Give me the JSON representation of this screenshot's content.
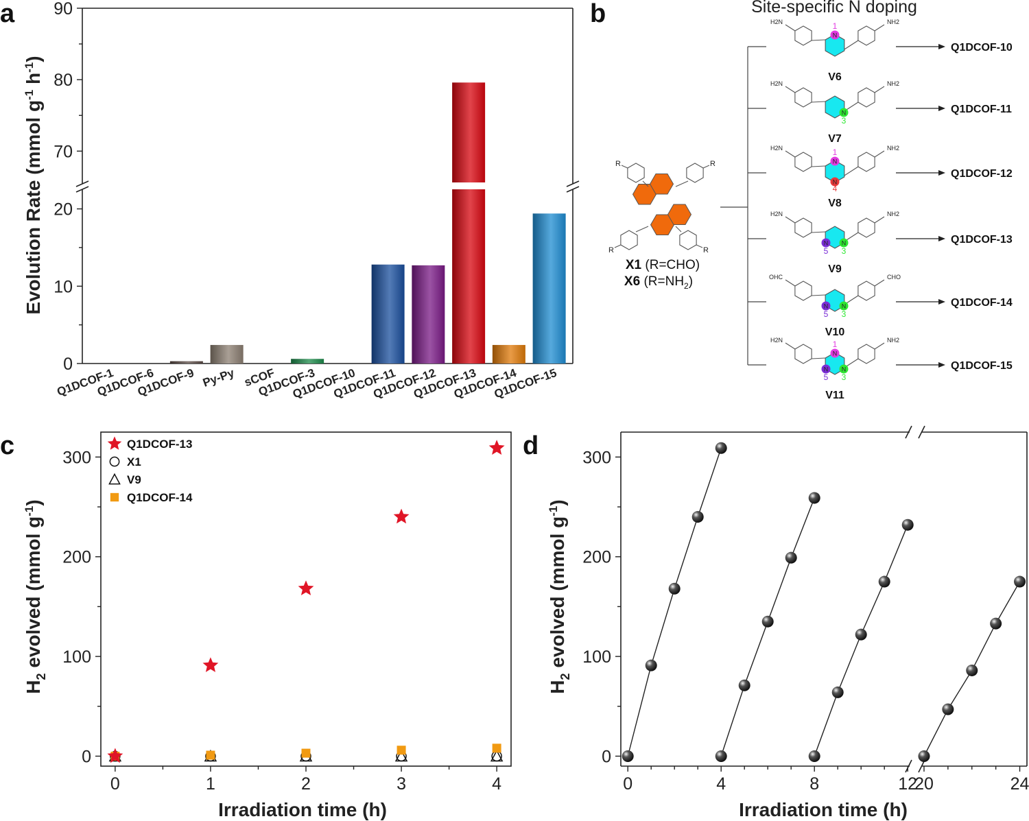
{
  "panel_letters": [
    "a",
    "b",
    "c",
    "d"
  ],
  "chart_data": [
    {
      "id": "a",
      "type": "bar",
      "ylabel": "Evolution Rate (mmol g-1 h-1)",
      "ylabel_main": "Evolution Rate (mmol g",
      "ylabel_sup1": "-1",
      "ylabel_mid": " h",
      "ylabel_sup2": "-1",
      "ylabel_end": ")",
      "categories": [
        "Q1DCOF-1",
        "Q1DCOF-6",
        "Q1DCOF-9",
        "Py-Py",
        "sCOF",
        "Q1DCOF-3",
        "Q1DCOF-10",
        "Q1DCOF-11",
        "Q1DCOF-12",
        "Q1DCOF-13",
        "Q1DCOF-14",
        "Q1DCOF-15"
      ],
      "values": [
        0,
        0,
        0.3,
        2.4,
        0,
        0.6,
        0,
        12.8,
        12.7,
        79.6,
        2.4,
        19.4
      ],
      "colors": [
        "#888888",
        "#888888",
        "#5a4a44",
        "#8c7f72",
        "#888888",
        "#1c8a4a",
        "#888888",
        "#1a4f9e",
        "#7a1a86",
        "#d8060f",
        "#e07a08",
        "#1e8cd2"
      ],
      "broken_axis": {
        "lower": [
          0,
          22
        ],
        "upper": [
          66,
          90
        ]
      },
      "yticks_lower": [
        "0",
        "10",
        "20"
      ],
      "yticks_upper": [
        "70",
        "80",
        "90"
      ]
    },
    {
      "id": "c",
      "type": "scatter",
      "xlabel": "Irradiation time (h)",
      "ylabel_sub": "2",
      "ylabel_rest": " evolved (mmol g",
      "ylabel_sup": "-1",
      "ylabel_end": ")",
      "ylabel_H": "H",
      "xlim": [
        -0.15,
        4.15
      ],
      "ylim": [
        -10,
        325
      ],
      "xticks": [
        "0",
        "1",
        "2",
        "3",
        "4"
      ],
      "yticks": [
        "0",
        "100",
        "200",
        "300"
      ],
      "series": [
        {
          "name": "Q1DCOF-13",
          "marker": "star",
          "color": "#e01526",
          "x": [
            0,
            1,
            2,
            3,
            4
          ],
          "y": [
            0,
            91,
            168,
            240,
            309
          ]
        },
        {
          "name": "X1",
          "marker": "circle",
          "color": "#111111",
          "x": [
            0,
            1,
            2,
            3,
            4
          ],
          "y": [
            0,
            0,
            0,
            0,
            0
          ]
        },
        {
          "name": "V9",
          "marker": "triangle",
          "color": "#111111",
          "x": [
            0,
            1,
            2,
            3,
            4
          ],
          "y": [
            0,
            0,
            0,
            0,
            0
          ]
        },
        {
          "name": "Q1DCOF-14",
          "marker": "square",
          "color": "#f19a12",
          "x": [
            0,
            1,
            2,
            3,
            4
          ],
          "y": [
            0,
            1,
            3,
            6,
            8
          ]
        }
      ]
    },
    {
      "id": "d",
      "type": "line",
      "xlabel": "Irradiation time (h)",
      "ylabel_H": "H",
      "ylabel_sub": "2",
      "ylabel_rest": " evolved (mmol g",
      "ylabel_sup": "-1",
      "ylabel_end": ")",
      "broken_axis": {
        "segments": [
          [
            -0.3,
            12.2
          ],
          [
            19.8,
            24.3
          ]
        ]
      },
      "ylim": [
        -10,
        325
      ],
      "xticks": [
        "0",
        "4",
        "8",
        "12",
        "20",
        "24"
      ],
      "yticks": [
        "0",
        "100",
        "200",
        "300"
      ],
      "series": [
        {
          "x": [
            0,
            1,
            2,
            3,
            4
          ],
          "y": [
            0,
            91,
            168,
            240,
            309
          ]
        },
        {
          "x": [
            4,
            5,
            6,
            7,
            8
          ],
          "y": [
            0,
            71,
            135,
            199,
            259
          ]
        },
        {
          "x": [
            8,
            9,
            10,
            11,
            12
          ],
          "y": [
            0,
            64,
            122,
            175,
            232
          ]
        },
        {
          "x": [
            20,
            21,
            22,
            23,
            24
          ],
          "y": [
            0,
            47,
            86,
            133,
            175
          ]
        }
      ]
    }
  ],
  "scheme_b": {
    "title": "Site-specific N doping",
    "core_labels": {
      "x1_bold": "X1",
      "x1_rest": " (R=CHO)",
      "x6_bold": "X6",
      "x6_rest": " (R=NH",
      "x6_sub": "2",
      "x6_end": ")"
    },
    "r_label": "R",
    "n_label": "N",
    "h2n_label": "H2N",
    "nh2_label": "NH2",
    "ohc_label": "OHC",
    "cho_label": "CHO",
    "molecules": [
      {
        "name": "V6",
        "product": "Q1DCOF-10",
        "positions": [
          "1"
        ]
      },
      {
        "name": "V7",
        "product": "Q1DCOF-11",
        "positions": [
          "3"
        ]
      },
      {
        "name": "V8",
        "product": "Q1DCOF-12",
        "positions": [
          "1",
          "4"
        ]
      },
      {
        "name": "V9",
        "product": "Q1DCOF-13",
        "positions": [
          "5",
          "3"
        ]
      },
      {
        "name": "V10",
        "product": "Q1DCOF-14",
        "positions": [
          "5",
          "3"
        ]
      },
      {
        "name": "V11",
        "product": "Q1DCOF-15",
        "positions": [
          "1",
          "5",
          "3"
        ]
      }
    ],
    "colors": {
      "ring": "#18e8f0",
      "pos1": "#e23be0",
      "pos3": "#2ee832",
      "pos4": "#e8393a",
      "pos5": "#7a2dd6",
      "core": "#f06a0c"
    }
  }
}
